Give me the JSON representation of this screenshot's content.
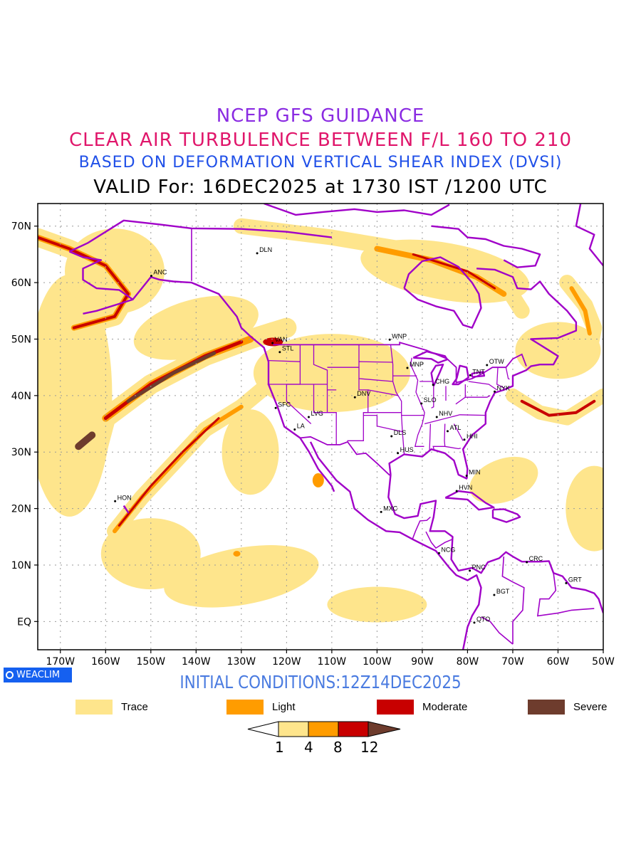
{
  "header": {
    "line1": "NCEP GFS GUIDANCE",
    "line2": "CLEAR AIR TURBULENCE BETWEEN F/L 160 TO 210",
    "line3": "BASED ON DEFORMATION VERTICAL SHEAR INDEX (DVSI)",
    "line4": "VALID For: 16DEC2025 at 1730 IST /1200 UTC"
  },
  "map": {
    "lat_labels": [
      "70N",
      "60N",
      "50N",
      "40N",
      "30N",
      "20N",
      "10N",
      "EQ"
    ],
    "lon_labels": [
      "170W",
      "160W",
      "150W",
      "140W",
      "130W",
      "120W",
      "110W",
      "100W",
      "90W",
      "80W",
      "70W",
      "60W",
      "50W"
    ],
    "stations": [
      {
        "code": "ANC",
        "lon": -149.9,
        "lat": 61.2
      },
      {
        "code": "DLN",
        "lon": -126.5,
        "lat": 65.2
      },
      {
        "code": "VAN",
        "lon": -123.1,
        "lat": 49.3
      },
      {
        "code": "STL",
        "lon": -121.5,
        "lat": 47.7
      },
      {
        "code": "WNP",
        "lon": -97.2,
        "lat": 49.9
      },
      {
        "code": "MNP",
        "lon": -93.3,
        "lat": 44.9
      },
      {
        "code": "CHG",
        "lon": -87.6,
        "lat": 41.9
      },
      {
        "code": "TNT",
        "lon": -79.4,
        "lat": 43.6
      },
      {
        "code": "OTW",
        "lon": -75.7,
        "lat": 45.4
      },
      {
        "code": "NYK",
        "lon": -74.0,
        "lat": 40.7
      },
      {
        "code": "DNV",
        "lon": -104.9,
        "lat": 39.7
      },
      {
        "code": "SFC",
        "lon": -122.4,
        "lat": 37.8
      },
      {
        "code": "LVG",
        "lon": -115.1,
        "lat": 36.2
      },
      {
        "code": "LA",
        "lon": -118.2,
        "lat": 34.0
      },
      {
        "code": "SLO",
        "lon": -90.2,
        "lat": 38.6
      },
      {
        "code": "NHV",
        "lon": -86.8,
        "lat": 36.2
      },
      {
        "code": "ATL",
        "lon": -84.4,
        "lat": 33.7
      },
      {
        "code": "DLS",
        "lon": -96.8,
        "lat": 32.8
      },
      {
        "code": "HHI",
        "lon": -80.7,
        "lat": 32.2
      },
      {
        "code": "HUS",
        "lon": -95.4,
        "lat": 29.8
      },
      {
        "code": "MIN",
        "lon": -80.2,
        "lat": 25.8
      },
      {
        "code": "HVN",
        "lon": -82.4,
        "lat": 23.1
      },
      {
        "code": "MXC",
        "lon": -99.1,
        "lat": 19.4
      },
      {
        "code": "HON",
        "lon": -157.9,
        "lat": 21.3
      },
      {
        "code": "NCG",
        "lon": -86.3,
        "lat": 12.1
      },
      {
        "code": "PNC",
        "lon": -79.5,
        "lat": 9.0
      },
      {
        "code": "BGT",
        "lon": -74.1,
        "lat": 4.7
      },
      {
        "code": "CRC",
        "lon": -66.9,
        "lat": 10.5
      },
      {
        "code": "GRT",
        "lon": -58.2,
        "lat": 6.8
      },
      {
        "code": "QTO",
        "lon": -78.5,
        "lat": -0.2
      }
    ]
  },
  "badge": {
    "label": "WEACLIM"
  },
  "footer": {
    "initial_conditions": "INITIAL CONDITIONS:12Z14DEC2025"
  },
  "legend": [
    {
      "label": "Trace",
      "color": "#fee58c"
    },
    {
      "label": "Light",
      "color": "#ff9c00"
    },
    {
      "label": "Moderate",
      "color": "#c80000"
    },
    {
      "label": "Severe",
      "color": "#6e3c2d"
    }
  ],
  "colorbar": {
    "ticks": [
      "1",
      "4",
      "8",
      "12"
    ],
    "colors": [
      "#ffffff",
      "#fee58c",
      "#ff9c00",
      "#c80000",
      "#6e3c2d"
    ]
  },
  "colors": {
    "boundary": "#a000c8",
    "trace": "#fee58c",
    "light": "#ff9c00",
    "moderate": "#c80000",
    "severe": "#6e3c2d"
  }
}
